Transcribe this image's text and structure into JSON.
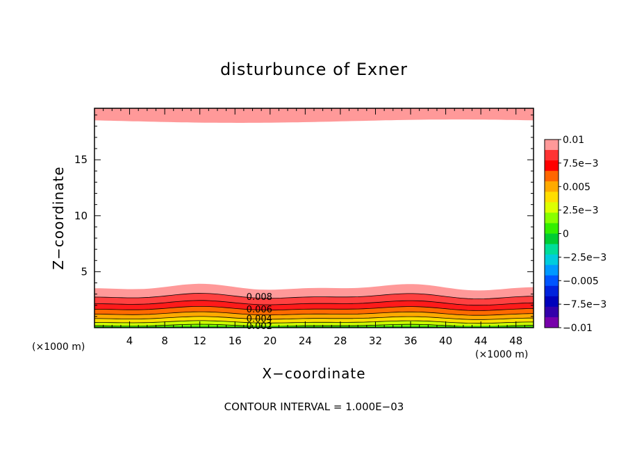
{
  "chart_data": {
    "type": "heatmap",
    "title": "disturbunce of Exner",
    "xlabel": "X−coordinate",
    "ylabel": "Z−coordinate",
    "x_unit": "(×1000 m)",
    "z_unit": "(×1000 m)",
    "footer": "CONTOUR INTERVAL = 1.000E−03",
    "xlim": [
      0,
      50
    ],
    "ylim": [
      0,
      19.6
    ],
    "x_ticks": [
      4,
      8,
      12,
      16,
      20,
      24,
      28,
      32,
      36,
      40,
      44,
      48
    ],
    "y_ticks": [
      5,
      10,
      15
    ],
    "colorbar": {
      "labels": [
        "0.01",
        "7.5e−3",
        "0.005",
        "2.5e−3",
        "0",
        "−2.5e−3",
        "−0.005",
        "−7.5e−3",
        "−0.01"
      ],
      "colors": [
        "#ff9999",
        "#ff3333",
        "#ff0000",
        "#ff6600",
        "#ffaa00",
        "#ffdd00",
        "#ddff00",
        "#88ff00",
        "#33ee00",
        "#00cc33",
        "#00dd99",
        "#00ccdd",
        "#0099ff",
        "#0055ff",
        "#0022dd",
        "#0000bb",
        "#3300aa",
        "#7700aa"
      ]
    },
    "contour_labels": [
      "0.008",
      "0.006",
      "0.004",
      "0.002"
    ],
    "field": {
      "top_band": {
        "z_lower_approx": 18.5,
        "value_approx": 0.0095
      },
      "lower_bands_top_z": [
        3.6,
        2.8,
        2.2,
        1.7,
        1.25,
        0.85,
        0.5,
        0.2
      ],
      "lower_bands_values": [
        0.0095,
        0.008,
        0.007,
        0.006,
        0.005,
        0.004,
        0.003,
        0.002
      ]
    }
  }
}
